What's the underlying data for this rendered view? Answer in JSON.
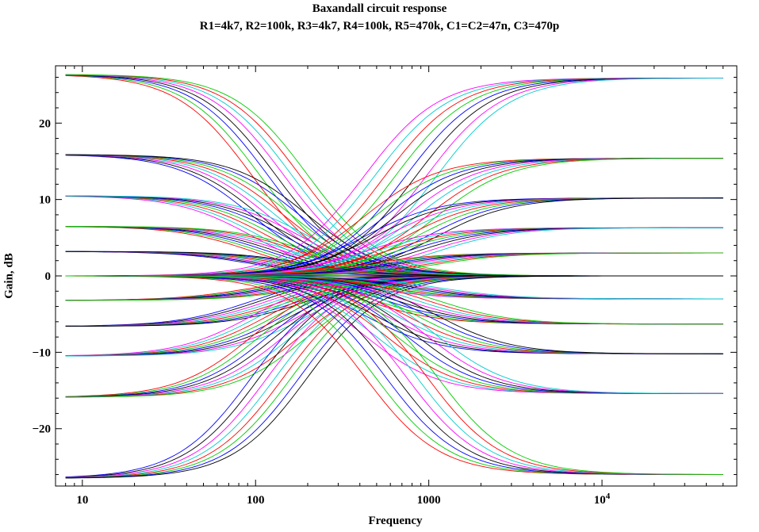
{
  "chart_data": {
    "type": "line",
    "title": "Baxandall circuit response",
    "subtitle": "R1=4k7, R2=100k, R3=4k7, R4=100k, R5=470k, C1=C2=47n, C3=470p",
    "xlabel": "Frequency",
    "ylabel": "Gain, dB",
    "xscale": "log",
    "xlim": [
      7,
      60000
    ],
    "ylim": [
      -27.5,
      27.5
    ],
    "x_ticks": [
      {
        "value": 10,
        "label": "10"
      },
      {
        "value": 100,
        "label": "100"
      },
      {
        "value": 1000,
        "label": "1000"
      },
      {
        "value": 10000,
        "label": "10",
        "sup": "4"
      }
    ],
    "y_ticks": [
      {
        "value": 20,
        "label": "20"
      },
      {
        "value": 10,
        "label": "10"
      },
      {
        "value": 0,
        "label": "0"
      },
      {
        "value": -10,
        "label": "−10"
      },
      {
        "value": -20,
        "label": "−20"
      }
    ],
    "grid": false,
    "legend": "none",
    "x_range_plotted": [
      8,
      50000
    ],
    "bass_shelf_levels_dB": [
      26.4,
      15.9,
      10.5,
      6.5,
      3.2,
      0,
      -3.2,
      -6.6,
      -10.5,
      -15.9,
      -26.5
    ],
    "treble_shelf_levels_dB": [
      25.9,
      15.4,
      10.2,
      6.3,
      3.0,
      0,
      -3.0,
      -6.3,
      -10.2,
      -15.4,
      -26.0
    ],
    "bass_corner_freq_range_Hz": [
      95,
      200
    ],
    "treble_corner_freq_range_Hz": [
      420,
      1100
    ],
    "series_colors": [
      "#ff0000",
      "#00cc00",
      "#0000ff",
      "#000000",
      "#ff00ff",
      "#00cccc"
    ]
  }
}
